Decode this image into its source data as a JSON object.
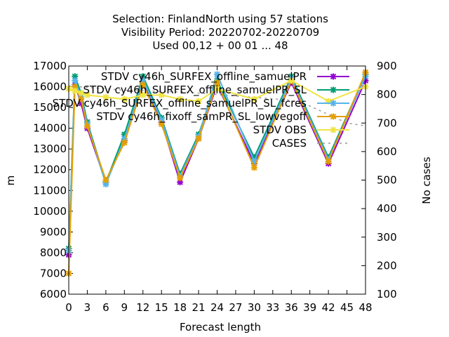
{
  "chart_data": {
    "type": "line",
    "title_lines": [
      "Selection: FinlandNorth using    57 stations",
      "Visibility   Period: 20220702-20220709",
      "Used  00,12  + 00 01 ... 48"
    ],
    "xlabel": "Forecast length",
    "ylabel": "m",
    "y2label": "No cases",
    "xlim": [
      0,
      48
    ],
    "ylim": [
      6000,
      17000
    ],
    "y2lim": [
      100,
      900
    ],
    "x_ticks": [
      0,
      3,
      6,
      9,
      12,
      15,
      18,
      21,
      24,
      27,
      30,
      33,
      36,
      39,
      42,
      45,
      48
    ],
    "y_ticks": [
      6000,
      7000,
      8000,
      9000,
      10000,
      11000,
      12000,
      13000,
      14000,
      15000,
      16000,
      17000
    ],
    "y2_ticks": [
      100,
      200,
      300,
      400,
      500,
      600,
      700,
      800,
      900
    ],
    "legend_position": "top-right",
    "series": [
      {
        "name": "STDV cy46h_SURFEX_offline_samuelPR",
        "color": "#9400d3",
        "marker": "x",
        "x": [
          0,
          1,
          2,
          3,
          6,
          9,
          12,
          15,
          18,
          21,
          24,
          30,
          36,
          42,
          48
        ],
        "y": [
          7900,
          16100,
          15200,
          14000,
          11400,
          13400,
          16200,
          14300,
          11400,
          13500,
          16100,
          12300,
          16200,
          12300,
          16300
        ]
      },
      {
        "name": "STDV cy46h_SURFEX_offline_samuelPR_SL",
        "color": "#009e73",
        "marker": "x",
        "x": [
          0,
          1,
          2,
          3,
          6,
          9,
          12,
          15,
          18,
          21,
          24,
          30,
          36,
          42,
          48
        ],
        "y": [
          8200,
          16500,
          15700,
          14300,
          11400,
          13700,
          16500,
          14500,
          11800,
          13700,
          16300,
          12600,
          16500,
          12600,
          16600
        ]
      },
      {
        "name": "STDV cy46h_SURFEX_offline_samuelPR_SL_fcres",
        "color": "#56b4e9",
        "marker": "x",
        "x": [
          0,
          1,
          2,
          3,
          6,
          9,
          12,
          15,
          18,
          21,
          24,
          30,
          36,
          42,
          48
        ],
        "y": [
          8100,
          16300,
          15500,
          14200,
          11300,
          13500,
          16300,
          14400,
          11700,
          13600,
          16600,
          12400,
          16400,
          12500,
          16500
        ]
      },
      {
        "name": "STDV cy46h_fixoff_samPR_SL_lowvegoff",
        "color": "#e69f00",
        "marker": "x",
        "x": [
          0,
          1,
          2,
          3,
          6,
          9,
          12,
          15,
          18,
          21,
          24,
          30,
          36,
          42,
          48
        ],
        "y": [
          7000,
          16000,
          15400,
          14100,
          11500,
          13300,
          16100,
          14200,
          11600,
          13500,
          16200,
          12100,
          16300,
          12400,
          16700
        ]
      },
      {
        "name": "STDV OBS",
        "color": "#f0e442",
        "marker": "x",
        "x": [
          0,
          1,
          2,
          3,
          6,
          9,
          12,
          15,
          18,
          21,
          24,
          30,
          36,
          42,
          48
        ],
        "y": [
          15900,
          15800,
          15700,
          15600,
          15500,
          15400,
          15600,
          15600,
          15400,
          15300,
          15900,
          15400,
          16300,
          15300,
          16000
        ]
      },
      {
        "name": "CASES",
        "color": "#999999",
        "axis": "y2",
        "dash": true,
        "x": [
          0,
          3,
          6,
          9,
          12,
          15,
          18,
          21,
          24,
          27,
          30,
          33,
          36,
          39,
          42,
          45,
          48
        ],
        "y": [
          830,
          825,
          820,
          815,
          815,
          810,
          810,
          805,
          800,
          795,
          790,
          785,
          780,
          760,
          730,
          700,
          690
        ]
      }
    ]
  }
}
